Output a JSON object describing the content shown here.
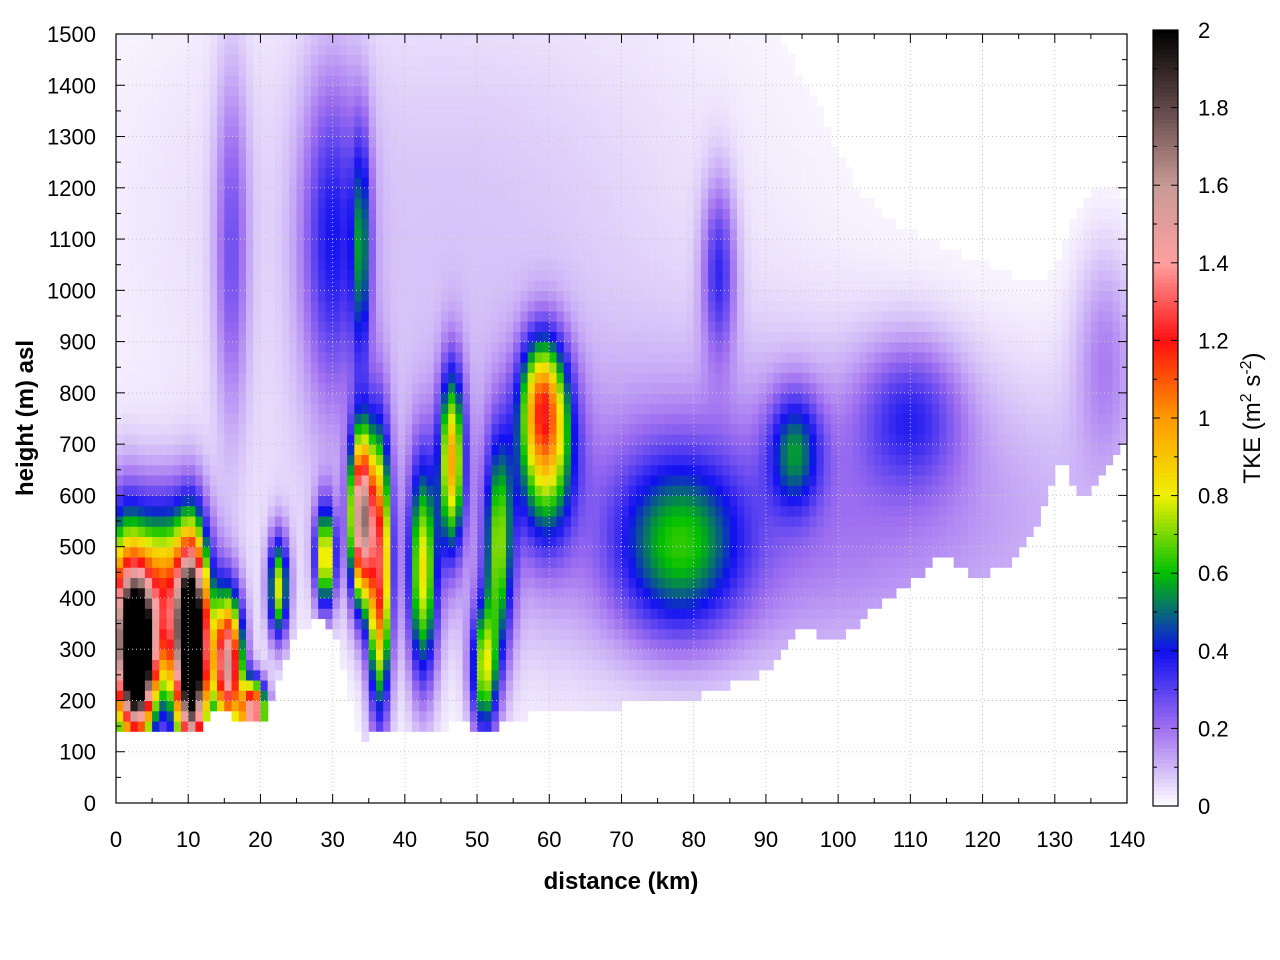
{
  "chart_data": {
    "type": "heatmap",
    "title": "",
    "xlabel": "distance (km)",
    "ylabel": "height (m) asl",
    "colorbar_label": "TKE (m² s⁻²)",
    "colorbar_label_parts": {
      "base": "TKE (m",
      "sup1": "2",
      "mid": " s",
      "sup2": "-2",
      "end": ")"
    },
    "xlim": [
      0,
      140
    ],
    "ylim": [
      0,
      1500
    ],
    "clim": [
      0,
      2
    ],
    "xticks": [
      0,
      10,
      20,
      30,
      40,
      50,
      60,
      70,
      80,
      90,
      100,
      110,
      120,
      130,
      140
    ],
    "xtick_labels": [
      "0",
      "10",
      "20",
      "30",
      "40",
      "50",
      "60",
      "70",
      "80",
      "90",
      "100",
      "110",
      "120",
      "130",
      "140"
    ],
    "yticks": [
      0,
      100,
      200,
      300,
      400,
      500,
      600,
      700,
      800,
      900,
      1000,
      1100,
      1200,
      1300,
      1400,
      1500
    ],
    "ytick_labels": [
      "0",
      "100",
      "200",
      "300",
      "400",
      "500",
      "600",
      "700",
      "800",
      "900",
      "1000",
      "1100",
      "1200",
      "1300",
      "1400",
      "1500"
    ],
    "cticks": [
      0,
      0.2,
      0.4,
      0.6,
      0.8,
      1,
      1.2,
      1.4,
      1.6,
      1.8,
      2
    ],
    "ctick_labels": [
      "0",
      "0.2",
      "0.4",
      "0.6",
      "0.8",
      "1",
      "1.2",
      "1.4",
      "1.6",
      "1.8",
      "2"
    ],
    "grid": true,
    "colormap": [
      {
        "v": 0.0,
        "c": "#ffffff"
      },
      {
        "v": 0.2,
        "c": "#a070f0"
      },
      {
        "v": 0.4,
        "c": "#1010f0"
      },
      {
        "v": 0.6,
        "c": "#00c000"
      },
      {
        "v": 0.8,
        "c": "#f0f000"
      },
      {
        "v": 1.0,
        "c": "#ff9a00"
      },
      {
        "v": 1.2,
        "c": "#ff1010"
      },
      {
        "v": 1.4,
        "c": "#ffa0a0"
      },
      {
        "v": 1.6,
        "c": "#c89a96"
      },
      {
        "v": 1.8,
        "c": "#604848"
      },
      {
        "v": 2.0,
        "c": "#000000"
      }
    ],
    "terrain": [
      [
        0,
        150
      ],
      [
        2,
        140
      ],
      [
        5,
        150
      ],
      [
        8,
        145
      ],
      [
        11,
        135
      ],
      [
        14,
        180
      ],
      [
        16,
        170
      ],
      [
        19,
        150
      ],
      [
        21,
        175
      ],
      [
        25,
        330
      ],
      [
        28,
        370
      ],
      [
        31,
        300
      ],
      [
        34,
        110
      ],
      [
        36,
        140
      ],
      [
        38,
        145
      ],
      [
        41,
        150
      ],
      [
        44,
        140
      ],
      [
        48,
        165
      ],
      [
        50,
        140
      ],
      [
        53,
        150
      ],
      [
        57,
        170
      ],
      [
        62,
        180
      ],
      [
        66,
        185
      ],
      [
        70,
        190
      ],
      [
        75,
        195
      ],
      [
        80,
        205
      ],
      [
        84,
        225
      ],
      [
        88,
        245
      ],
      [
        92,
        280
      ],
      [
        95,
        350
      ],
      [
        100,
        310
      ],
      [
        105,
        380
      ],
      [
        110,
        430
      ],
      [
        115,
        490
      ],
      [
        118,
        450
      ],
      [
        121,
        450
      ],
      [
        125,
        480
      ],
      [
        128,
        560
      ],
      [
        131,
        690
      ],
      [
        133,
        590
      ],
      [
        136,
        630
      ],
      [
        139,
        700
      ],
      [
        140,
        700
      ]
    ],
    "features": [
      {
        "x": 10.5,
        "y": 290,
        "sx": 1.4,
        "sy": 140,
        "v": 2.3
      },
      {
        "x": 3.0,
        "y": 280,
        "sx": 1.4,
        "sy": 90,
        "v": 2.1
      },
      {
        "x": 6.5,
        "y": 380,
        "sx": 4.0,
        "sy": 130,
        "v": 1.15
      },
      {
        "x": 1.0,
        "y": 330,
        "sx": 2.0,
        "sy": 150,
        "v": 1.0
      },
      {
        "x": 15.5,
        "y": 270,
        "sx": 1.4,
        "sy": 90,
        "v": 1.5
      },
      {
        "x": 19.0,
        "y": 180,
        "sx": 1.2,
        "sy": 40,
        "v": 1.5
      },
      {
        "x": 22.5,
        "y": 420,
        "sx": 1.0,
        "sy": 70,
        "v": 0.75
      },
      {
        "x": 29.0,
        "y": 480,
        "sx": 1.0,
        "sy": 70,
        "v": 0.85
      },
      {
        "x": 34.0,
        "y": 560,
        "sx": 1.1,
        "sy": 110,
        "v": 1.6
      },
      {
        "x": 36.5,
        "y": 450,
        "sx": 1.1,
        "sy": 180,
        "v": 1.15
      },
      {
        "x": 42.5,
        "y": 450,
        "sx": 1.4,
        "sy": 150,
        "v": 0.75
      },
      {
        "x": 46.5,
        "y": 670,
        "sx": 1.2,
        "sy": 120,
        "v": 0.85
      },
      {
        "x": 51.0,
        "y": 260,
        "sx": 1.3,
        "sy": 90,
        "v": 0.7
      },
      {
        "x": 53.0,
        "y": 500,
        "sx": 1.4,
        "sy": 150,
        "v": 0.6
      },
      {
        "x": 59.5,
        "y": 700,
        "sx": 2.6,
        "sy": 120,
        "v": 0.75
      },
      {
        "x": 59.0,
        "y": 800,
        "sx": 2.0,
        "sy": 80,
        "v": 0.5
      },
      {
        "x": 78.0,
        "y": 500,
        "sx": 6.0,
        "sy": 120,
        "v": 0.45
      },
      {
        "x": 94.0,
        "y": 690,
        "sx": 2.5,
        "sy": 80,
        "v": 0.38
      },
      {
        "x": 110.0,
        "y": 760,
        "sx": 5.0,
        "sy": 100,
        "v": 0.25
      },
      {
        "x": 30.0,
        "y": 1100,
        "sx": 3.0,
        "sy": 220,
        "v": 0.32
      },
      {
        "x": 34.0,
        "y": 1080,
        "sx": 0.9,
        "sy": 160,
        "v": 0.38
      },
      {
        "x": 16.0,
        "y": 1080,
        "sx": 1.6,
        "sy": 240,
        "v": 0.22
      },
      {
        "x": 83.5,
        "y": 1040,
        "sx": 1.6,
        "sy": 120,
        "v": 0.3
      },
      {
        "x": 137.0,
        "y": 880,
        "sx": 3.0,
        "sy": 150,
        "v": 0.15
      },
      {
        "x": 90.0,
        "y": 560,
        "sx": 35.0,
        "sy": 220,
        "v": 0.2
      },
      {
        "x": 45.0,
        "y": 1150,
        "sx": 30.0,
        "sy": 350,
        "v": 0.08
      }
    ]
  }
}
